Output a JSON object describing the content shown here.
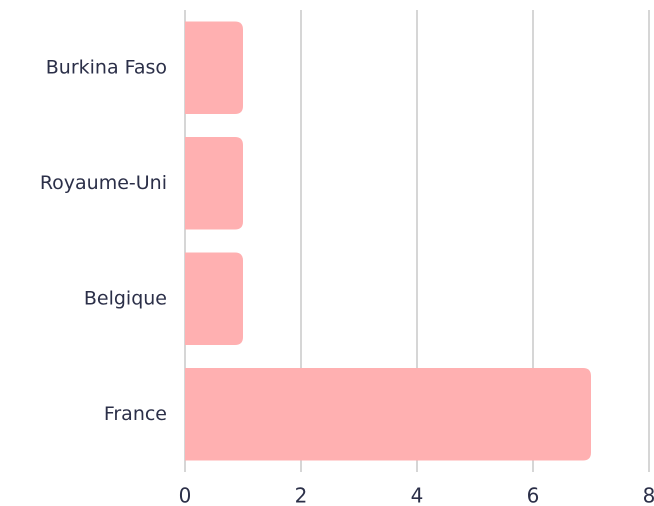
{
  "chart_data": {
    "type": "bar",
    "orientation": "horizontal",
    "categories": [
      "Burkina Faso",
      "Royaume-Uni",
      "Belgique",
      "France"
    ],
    "values": [
      1,
      1,
      1,
      7
    ],
    "color": "#ffb0b1",
    "xlim": [
      0,
      8
    ],
    "xticks": [
      0,
      2,
      4,
      6,
      8
    ],
    "grid": true
  }
}
